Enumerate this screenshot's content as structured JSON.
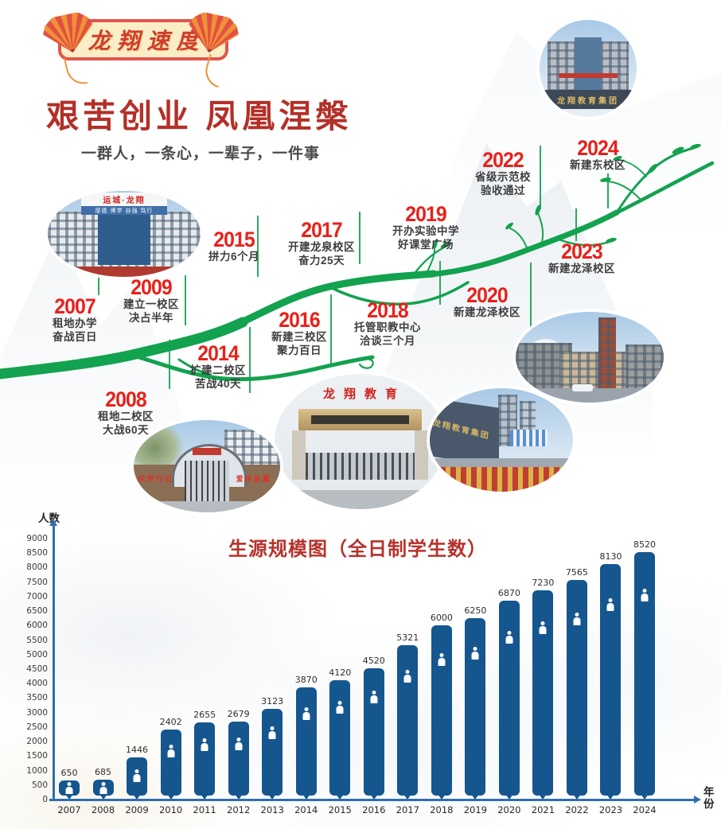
{
  "banner": {
    "title": "龙翔速度"
  },
  "header": {
    "title": "艰苦创业  凤凰涅槃",
    "subtitle": "一群人，一条心，一辈子，一件事"
  },
  "timeline": {
    "events": [
      {
        "year": "2007",
        "lines": [
          "租地办学",
          "奋战百日"
        ]
      },
      {
        "year": "2008",
        "lines": [
          "租地二校区",
          "大战60天"
        ]
      },
      {
        "year": "2009",
        "lines": [
          "建立一校区",
          "决占半年"
        ]
      },
      {
        "year": "2014",
        "lines": [
          "扩建二校区",
          "苦战40天"
        ]
      },
      {
        "year": "2015",
        "lines": [
          "拼力6个月"
        ]
      },
      {
        "year": "2016",
        "lines": [
          "新建三校区",
          "聚力百日"
        ]
      },
      {
        "year": "2017",
        "lines": [
          "开建龙泉校区",
          "奋力25天"
        ]
      },
      {
        "year": "2018",
        "lines": [
          "托管职教中心",
          "洽谈三个月"
        ]
      },
      {
        "year": "2019",
        "lines": [
          "开办实验中学",
          "好课堂广场"
        ]
      },
      {
        "year": "2020",
        "lines": [
          "新建龙泽校区"
        ]
      },
      {
        "year": "2022",
        "lines": [
          "省级示范校",
          "验收通过"
        ]
      },
      {
        "year": "2023",
        "lines": [
          "新建龙泽校区"
        ]
      },
      {
        "year": "2024",
        "lines": [
          "新建东校区"
        ]
      }
    ]
  },
  "photos": {
    "headquarters": {
      "caption": "龙翔教育集团"
    },
    "campus_one": {
      "sign_top": "运城·龙翔",
      "sign_motto": "厚德 博学 自强 笃行"
    },
    "main_gate": {
      "sign": "龙翔教育"
    },
    "old_gate": {
      "slogan_left": "织梦行远",
      "slogan_right": "爱拼能赢"
    },
    "street_wall": {
      "sign": "龙翔教育集团"
    }
  },
  "chart_data": {
    "type": "bar",
    "title": "生源规模图（全日制学生数）",
    "ylabel": "人数",
    "xlabel": "年份",
    "categories": [
      "2007",
      "2008",
      "2009",
      "2010",
      "2011",
      "2012",
      "2013",
      "2014",
      "2015",
      "2016",
      "2017",
      "2018",
      "2019",
      "2020",
      "2021",
      "2022",
      "2023",
      "2024"
    ],
    "values": [
      650,
      685,
      1446,
      2402,
      2655,
      2679,
      3123,
      3870,
      4120,
      4520,
      5321,
      6000,
      6250,
      6870,
      7230,
      7565,
      8130,
      8520
    ],
    "ylim": [
      0,
      9000
    ],
    "ytick_step": 500,
    "grid": false,
    "legend": null,
    "bar_icon": "person-icon"
  },
  "colors": {
    "accent_red": "#e8211a",
    "deep_red": "#b5322b",
    "vine_green": "#13a24f",
    "bar_blue": "#15568f",
    "axis_blue": "#2e6fad",
    "text_dark": "#3d3d3d",
    "fan_orange": "#ef9136",
    "fan_red": "#e25044",
    "gold": "#d9b964"
  }
}
